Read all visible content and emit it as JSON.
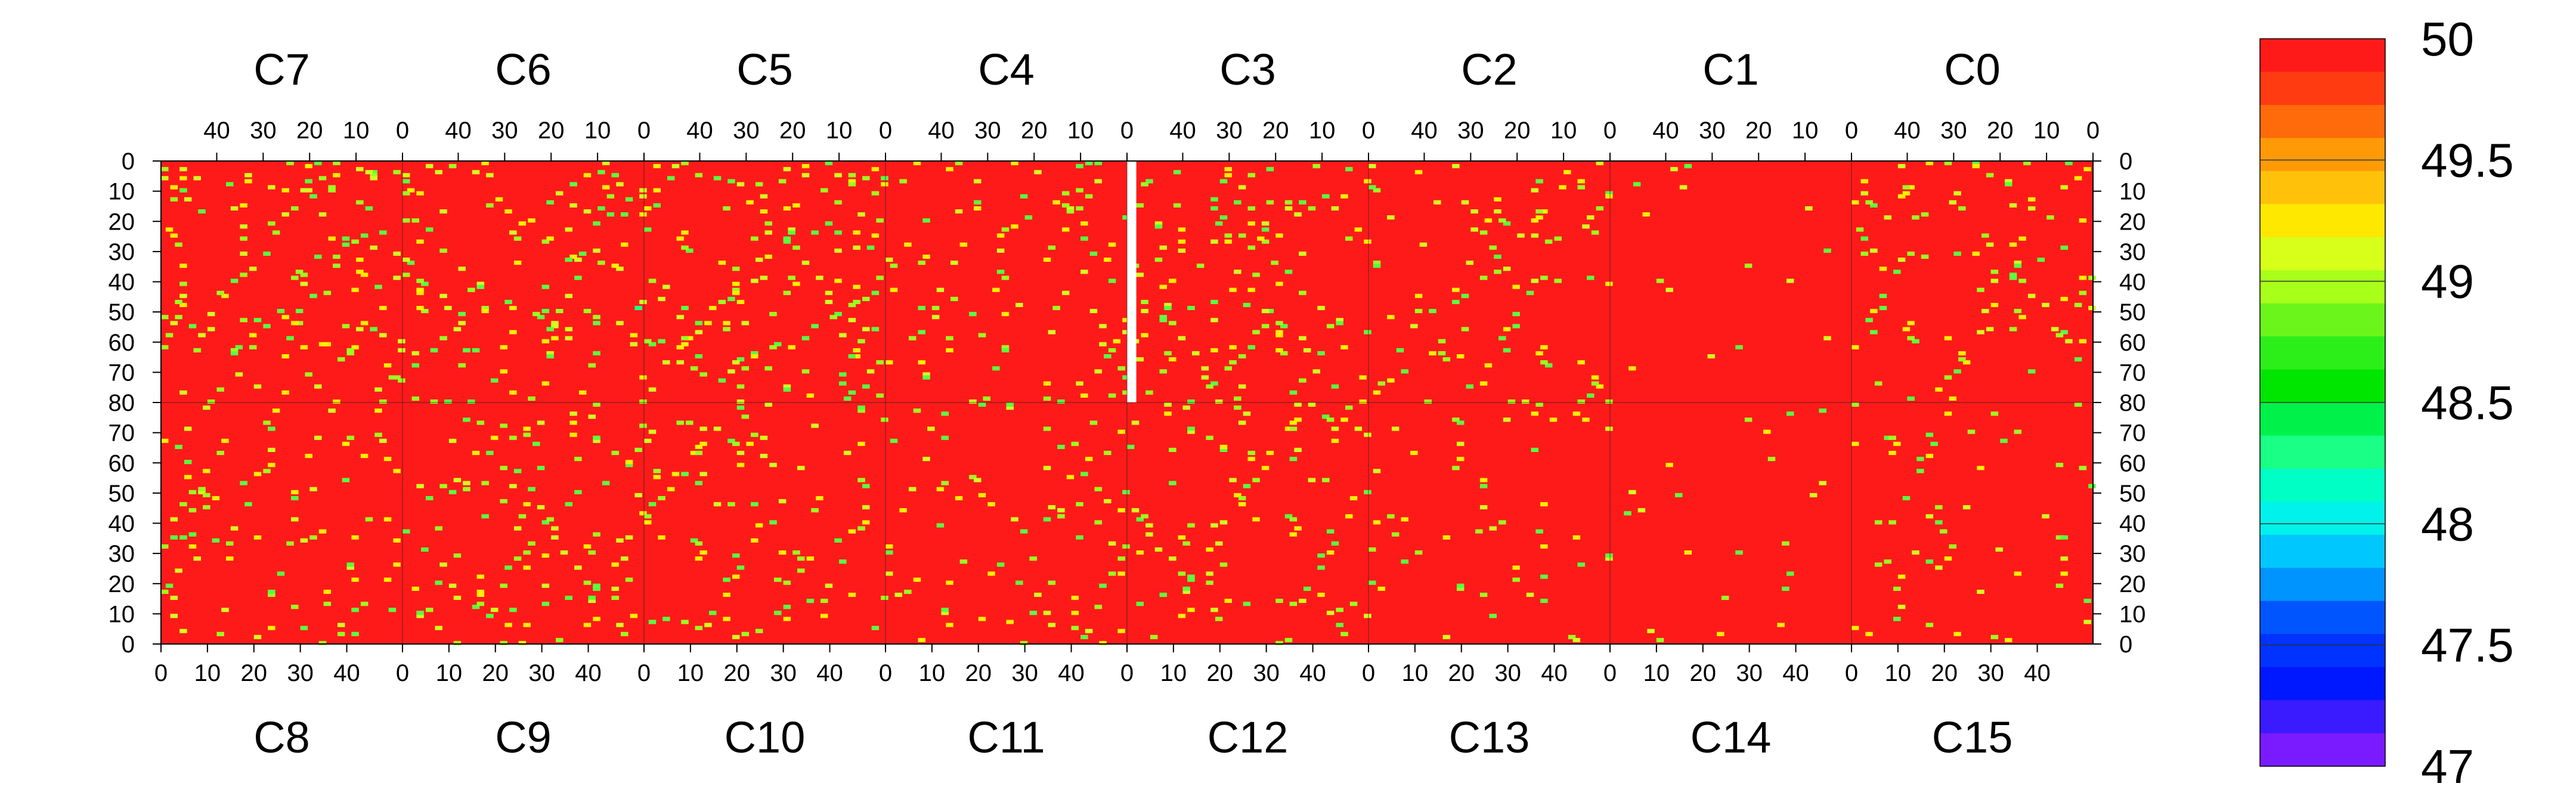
{
  "chart_data": {
    "type": "heatmap",
    "title": "",
    "top_chips": [
      "C7",
      "C6",
      "C5",
      "C4",
      "C3",
      "C2",
      "C1",
      "C0"
    ],
    "bottom_chips": [
      "C8",
      "C9",
      "C10",
      "C11",
      "C12",
      "C13",
      "C14",
      "C15"
    ],
    "chip_columns": 52,
    "rows_per_half": 80,
    "top_col_ticks": [
      "40",
      "30",
      "20",
      "10",
      "0"
    ],
    "top_col_tick_values": [
      40,
      30,
      20,
      10,
      0
    ],
    "bottom_col_ticks": [
      "0",
      "10",
      "20",
      "30",
      "40"
    ],
    "bottom_col_tick_values": [
      0,
      10,
      20,
      30,
      40
    ],
    "row_ticks_top": [
      "0",
      "10",
      "20",
      "30",
      "40",
      "50",
      "60",
      "70",
      "80"
    ],
    "row_ticks_bottom": [
      "70",
      "60",
      "50",
      "40",
      "30",
      "20",
      "10",
      "0"
    ],
    "z_range": [
      47,
      50
    ],
    "colorbar_labels": [
      "50",
      "49.5",
      "49",
      "48.5",
      "48",
      "47.5",
      "47"
    ],
    "colorbar_values": [
      50,
      49.5,
      49,
      48.5,
      48,
      47.5,
      47
    ],
    "colorbar_colors": [
      "#ff1a1a",
      "#ff3b12",
      "#ff6a0a",
      "#ff9a06",
      "#ffc10a",
      "#ffe800",
      "#d8ff1a",
      "#a8ff1a",
      "#6cf51a",
      "#2cef1a",
      "#00e600",
      "#00f24a",
      "#1aff85",
      "#00ffc4",
      "#00f2ea",
      "#00c8ff",
      "#0094ff",
      "#0055ff",
      "#0033ff",
      "#0018ff",
      "#3a1aff",
      "#7a1aff"
    ],
    "dominant_value": 50,
    "dominant_color": "#ff1a1a",
    "dead_region": {
      "chip": "C3",
      "columns": [
        50,
        51
      ],
      "rows": [
        0,
        80
      ]
    },
    "deviant_pixel_colors": [
      "#ffee00",
      "#d0ff20",
      "#9aff20",
      "#5aff40"
    ],
    "notable_deviant_pixels": [
      {
        "chip": "C7",
        "col": 4,
        "row": 80,
        "value": 49.2
      },
      {
        "chip": "C6",
        "col": 1,
        "row": 48,
        "value": 48.6
      },
      {
        "chip": "C6",
        "col": 0,
        "row": 80,
        "value": 49.0
      },
      {
        "chip": "C2",
        "col": 0,
        "row": 80,
        "value": 49.0
      },
      {
        "chip": "C0",
        "col": 1,
        "row": 2,
        "value": 49.4
      }
    ]
  }
}
